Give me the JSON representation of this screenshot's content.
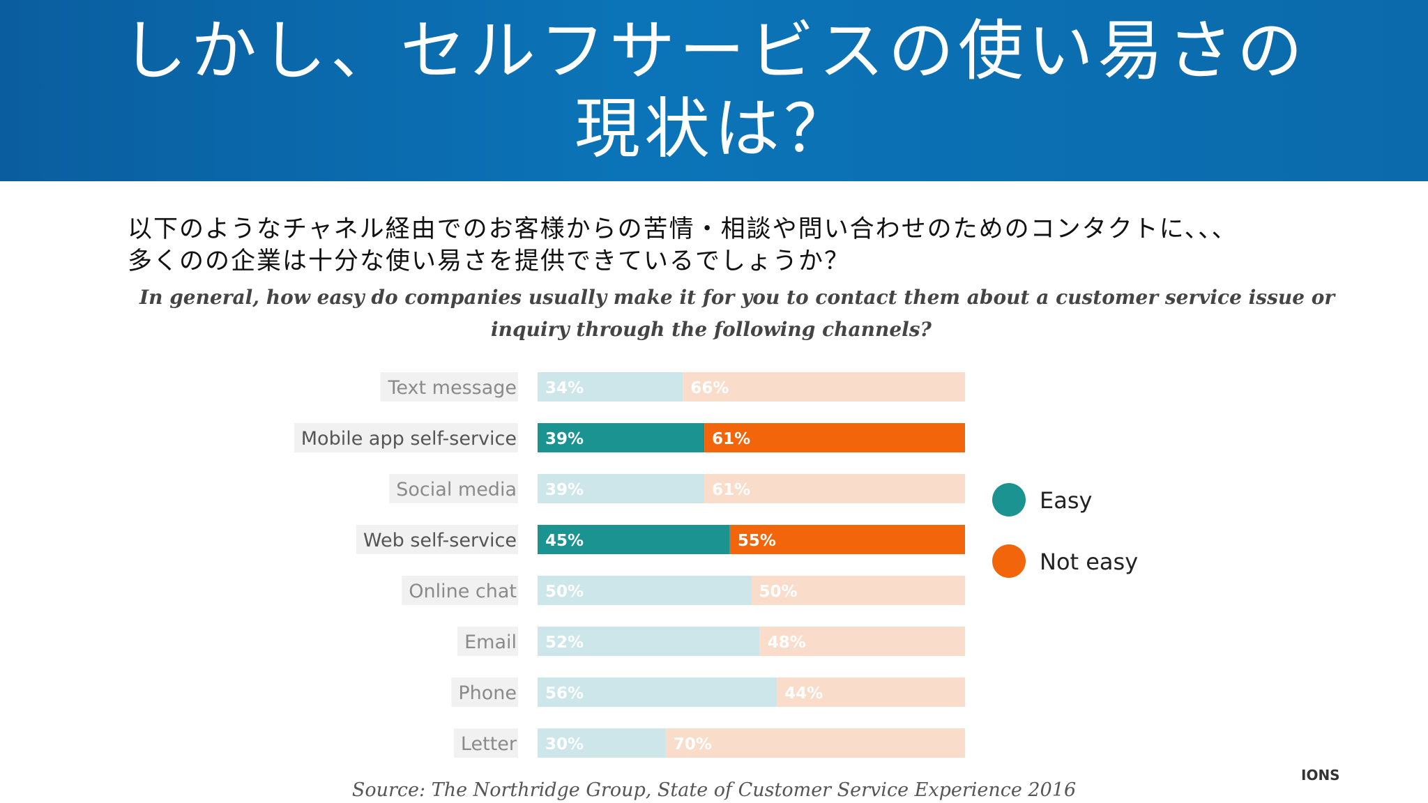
{
  "header": {
    "title_lines": [
      "しかし、セルフサービスの使い易さの",
      "現状は？"
    ]
  },
  "intro": {
    "lines": [
      "以下のようなチャネル経由でのお客様からの苦情・相談や問い合わせのためのコンタクトに、、、",
      "多くのの企業は十分な使い易さを提供できているでしょうか？"
    ]
  },
  "chart_data": {
    "type": "bar",
    "orientation": "horizontal",
    "stacked": true,
    "normalized": true,
    "title": "In general, how easy do companies usually make it for you to contact them about a customer service issue or inquiry through the following channels?",
    "categories": [
      "Text message",
      "Mobile app self-service",
      "Social media",
      "Web self-service",
      "Online chat",
      "Email",
      "Phone",
      "Letter"
    ],
    "series": [
      {
        "name": "Easy",
        "values": [
          34,
          39,
          39,
          45,
          50,
          52,
          56,
          30
        ],
        "color": "#1a9391"
      },
      {
        "name": "Not easy",
        "values": [
          66,
          61,
          61,
          55,
          50,
          48,
          44,
          70
        ],
        "color": "#f2650a"
      }
    ],
    "value_labels": {
      "Easy": [
        "34%",
        "39%",
        "39%",
        "45%",
        "50%",
        "52%",
        "56%",
        "30%"
      ],
      "Not easy": [
        "66%",
        "61%",
        "61%",
        "55%",
        "50%",
        "48%",
        "44%",
        "70%"
      ]
    },
    "highlighted_categories": [
      "Mobile app self-service",
      "Web self-service"
    ],
    "faded_colors": {
      "Easy": "#cde6ea",
      "Not easy": "#fadccb"
    },
    "xlim": [
      0,
      100
    ],
    "legend_position": "right",
    "grid": false,
    "source": "Source: The Northridge Group, State of Customer Service Experience 2016"
  },
  "footer": {
    "brand": "IONS"
  }
}
